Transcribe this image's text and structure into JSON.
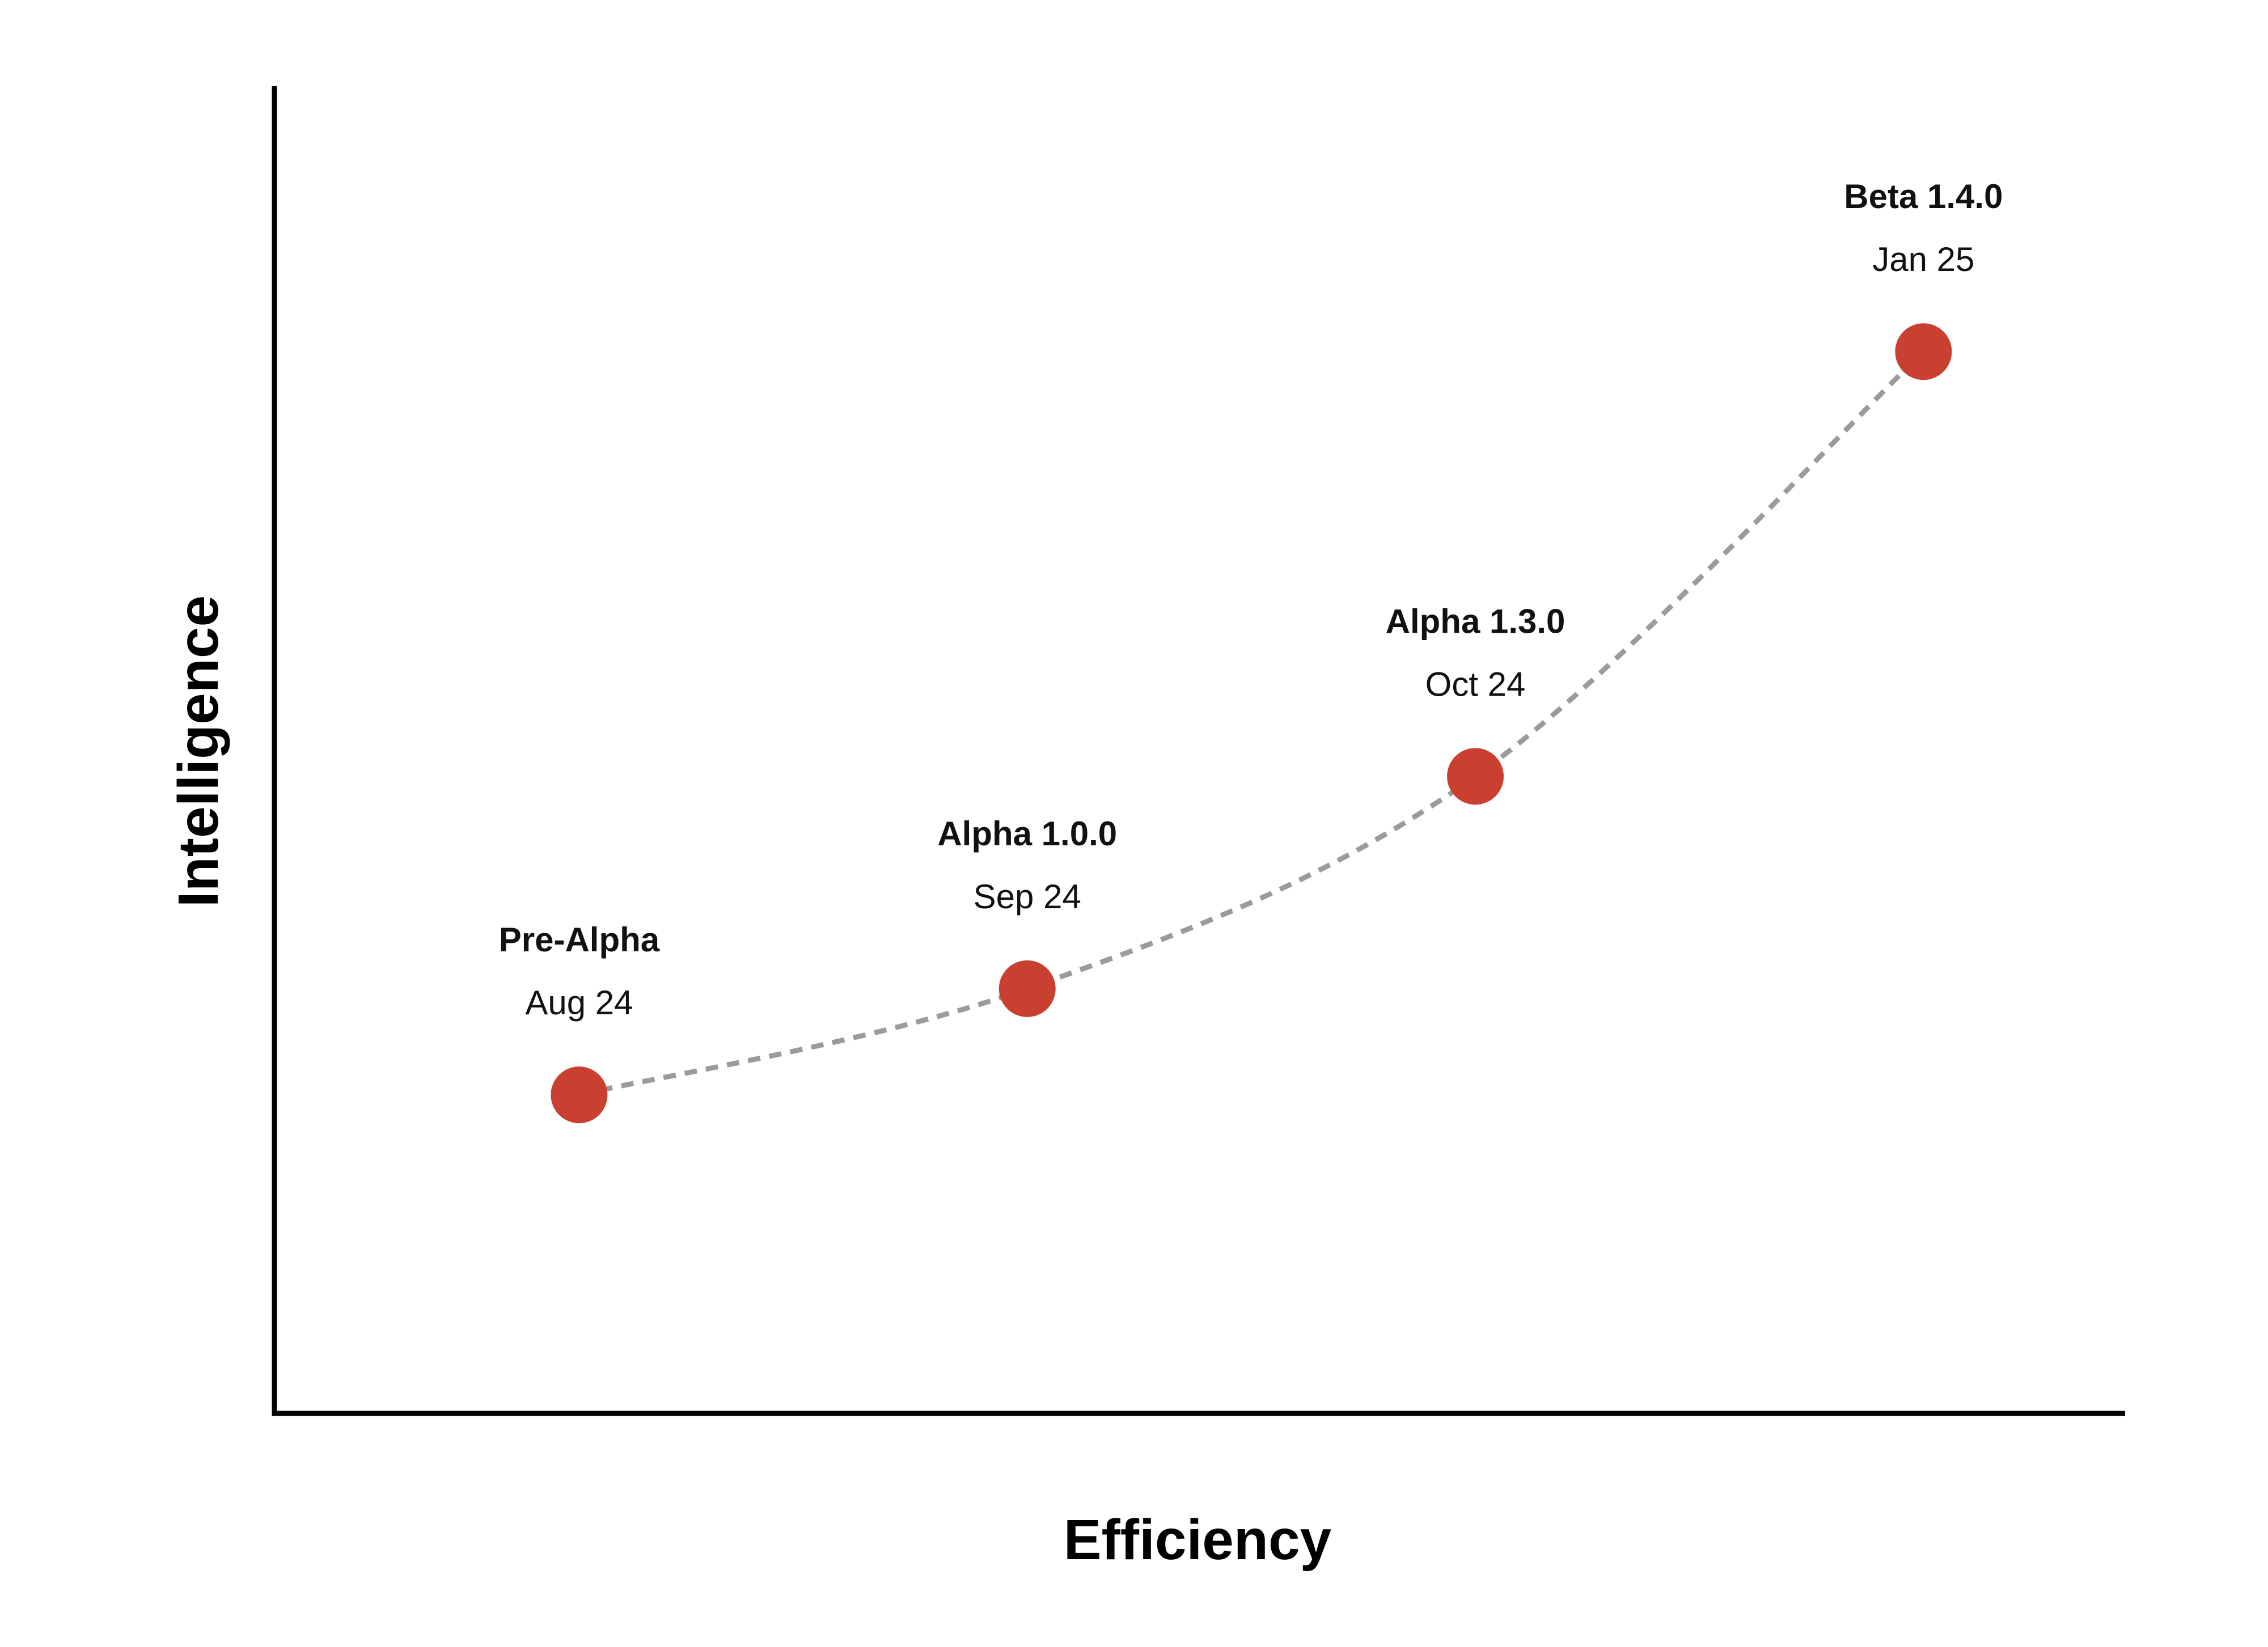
{
  "chart_data": {
    "type": "scatter",
    "title": "",
    "xlabel": "Efficiency",
    "ylabel": "Intelligence",
    "grid": false,
    "legend": "none",
    "connector": "dashed curve",
    "colors": {
      "point": "#c94030",
      "connector": "#9b9b9b",
      "axis": "#000000"
    },
    "points": [
      {
        "name": "Pre-Alpha",
        "date": "Aug 24",
        "x": 1.0,
        "y": 1.0
      },
      {
        "name": "Alpha 1.0.0",
        "date": "Sep 24",
        "x": 2.0,
        "y": 1.4
      },
      {
        "name": "Alpha 1.3.0",
        "date": "Oct 24",
        "x": 3.0,
        "y": 2.2
      },
      {
        "name": "Beta 1.4.0",
        "date": "Jan 25",
        "x": 4.0,
        "y": 3.8
      }
    ],
    "xlim": [
      0.32,
      4.45
    ],
    "ylim": [
      -0.2,
      4.8
    ]
  }
}
